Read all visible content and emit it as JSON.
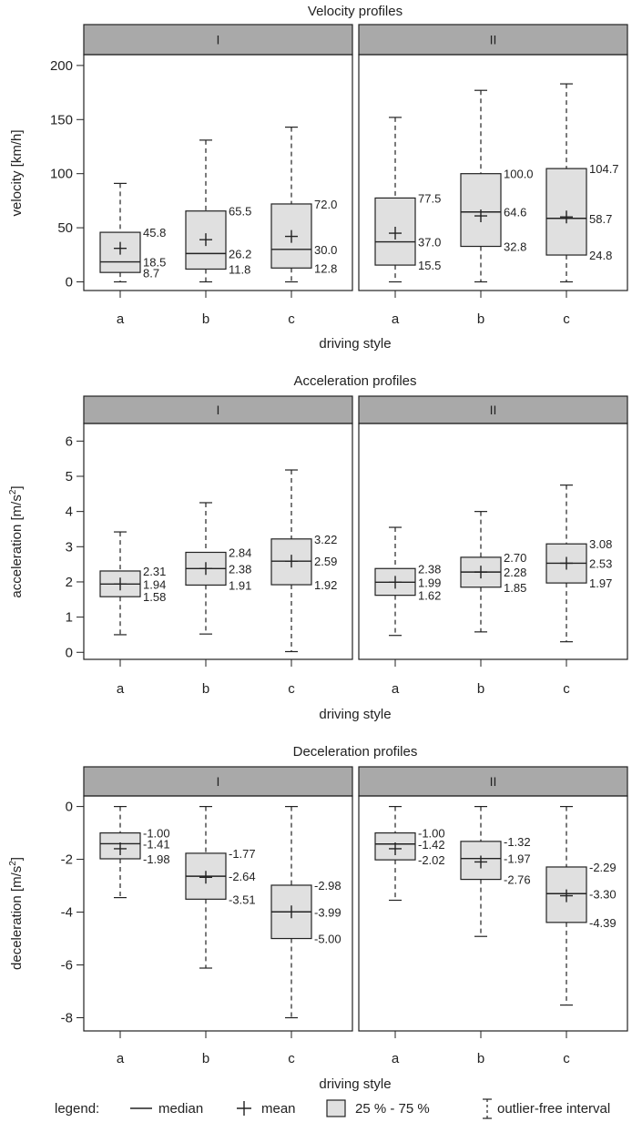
{
  "chart_data": [
    {
      "type": "boxplot",
      "title": "Velocity profiles",
      "xlabel": "driving style",
      "ylabel": "velocity [km/h]",
      "ylabel_sup": "",
      "ylim": [
        -8,
        210
      ],
      "yticks": [
        0,
        50,
        100,
        150,
        200
      ],
      "categories": [
        "a",
        "b",
        "c"
      ],
      "panels": [
        {
          "name": "I",
          "boxes": [
            {
              "cat": "a",
              "q1": 8.7,
              "median": 18.5,
              "q3": 45.8,
              "mean": 31,
              "whisker_low": 0,
              "whisker_high": 91,
              "labels": [
                "45.8",
                "18.5",
                "8.7"
              ]
            },
            {
              "cat": "b",
              "q1": 11.8,
              "median": 26.2,
              "q3": 65.5,
              "mean": 39,
              "whisker_low": 0,
              "whisker_high": 131,
              "labels": [
                "65.5",
                "26.2",
                "11.8"
              ]
            },
            {
              "cat": "c",
              "q1": 12.8,
              "median": 30.0,
              "q3": 72.0,
              "mean": 42,
              "whisker_low": 0,
              "whisker_high": 143,
              "labels": [
                "72.0",
                "30.0",
                "12.8"
              ]
            }
          ]
        },
        {
          "name": "II",
          "boxes": [
            {
              "cat": "a",
              "q1": 15.5,
              "median": 37.0,
              "q3": 77.5,
              "mean": 45,
              "whisker_low": 0,
              "whisker_high": 152,
              "labels": [
                "77.5",
                "37.0",
                "15.5"
              ]
            },
            {
              "cat": "b",
              "q1": 32.8,
              "median": 64.6,
              "q3": 100.0,
              "mean": 61,
              "whisker_low": 0,
              "whisker_high": 177,
              "labels": [
                "100.0",
                "64.6",
                "32.8"
              ]
            },
            {
              "cat": "c",
              "q1": 24.8,
              "median": 58.7,
              "q3": 104.7,
              "mean": 60,
              "whisker_low": 0,
              "whisker_high": 183,
              "labels": [
                "104.7",
                "58.7",
                "24.8"
              ]
            }
          ]
        }
      ]
    },
    {
      "type": "boxplot",
      "title": "Acceleration profiles",
      "xlabel": "driving style",
      "ylabel": "acceleration [m/s",
      "ylabel_sup": "2",
      "ylabel_end": "]",
      "ylim": [
        -0.2,
        6.5
      ],
      "yticks": [
        0,
        1,
        2,
        3,
        4,
        5,
        6
      ],
      "categories": [
        "a",
        "b",
        "c"
      ],
      "panels": [
        {
          "name": "I",
          "boxes": [
            {
              "cat": "a",
              "q1": 1.58,
              "median": 1.94,
              "q3": 2.31,
              "mean": 1.94,
              "whisker_low": 0.5,
              "whisker_high": 3.42,
              "labels": [
                "2.31",
                "1.94",
                "1.58"
              ]
            },
            {
              "cat": "b",
              "q1": 1.91,
              "median": 2.38,
              "q3": 2.84,
              "mean": 2.38,
              "whisker_low": 0.52,
              "whisker_high": 4.25,
              "labels": [
                "2.84",
                "2.38",
                "1.91"
              ]
            },
            {
              "cat": "c",
              "q1": 1.92,
              "median": 2.59,
              "q3": 3.22,
              "mean": 2.59,
              "whisker_low": 0.02,
              "whisker_high": 5.18,
              "labels": [
                "3.22",
                "2.59",
                "1.92"
              ]
            }
          ]
        },
        {
          "name": "II",
          "boxes": [
            {
              "cat": "a",
              "q1": 1.62,
              "median": 1.99,
              "q3": 2.38,
              "mean": 1.99,
              "whisker_low": 0.48,
              "whisker_high": 3.55,
              "labels": [
                "2.38",
                "1.99",
                "1.62"
              ]
            },
            {
              "cat": "b",
              "q1": 1.85,
              "median": 2.28,
              "q3": 2.7,
              "mean": 2.28,
              "whisker_low": 0.58,
              "whisker_high": 4.0,
              "labels": [
                "2.70",
                "2.28",
                "1.85"
              ]
            },
            {
              "cat": "c",
              "q1": 1.97,
              "median": 2.53,
              "q3": 3.08,
              "mean": 2.53,
              "whisker_low": 0.3,
              "whisker_high": 4.75,
              "labels": [
                "3.08",
                "2.53",
                "1.97"
              ]
            }
          ]
        }
      ]
    },
    {
      "type": "boxplot",
      "title": "Deceleration profiles",
      "xlabel": "driving style",
      "ylabel": "deceleration [m/s",
      "ylabel_sup": "2",
      "ylabel_end": "]",
      "ylim": [
        -8.5,
        0.4
      ],
      "yticks": [
        0,
        -2,
        -4,
        -6,
        -8
      ],
      "categories": [
        "a",
        "b",
        "c"
      ],
      "panels": [
        {
          "name": "I",
          "boxes": [
            {
              "cat": "a",
              "q1": -1.98,
              "median": -1.41,
              "q3": -1.0,
              "mean": -1.6,
              "whisker_low": -3.45,
              "whisker_high": 0,
              "labels": [
                "-1.00",
                "-1.41",
                "-1.98"
              ]
            },
            {
              "cat": "b",
              "q1": -3.51,
              "median": -2.64,
              "q3": -1.77,
              "mean": -2.68,
              "whisker_low": -6.12,
              "whisker_high": 0,
              "labels": [
                "-1.77",
                "-2.64",
                "-3.51"
              ]
            },
            {
              "cat": "c",
              "q1": -5.0,
              "median": -3.99,
              "q3": -2.98,
              "mean": -3.99,
              "whisker_low": -8.0,
              "whisker_high": 0,
              "labels": [
                "-2.98",
                "-3.99",
                "-5.00"
              ]
            }
          ]
        },
        {
          "name": "II",
          "boxes": [
            {
              "cat": "a",
              "q1": -2.02,
              "median": -1.42,
              "q3": -1.0,
              "mean": -1.6,
              "whisker_low": -3.55,
              "whisker_high": 0,
              "labels": [
                "-1.00",
                "-1.42",
                "-2.02"
              ]
            },
            {
              "cat": "b",
              "q1": -2.76,
              "median": -1.97,
              "q3": -1.32,
              "mean": -2.1,
              "whisker_low": -4.92,
              "whisker_high": 0,
              "labels": [
                "-1.32",
                "-1.97",
                "-2.76"
              ]
            },
            {
              "cat": "c",
              "q1": -4.39,
              "median": -3.3,
              "q3": -2.29,
              "mean": -3.38,
              "whisker_low": -7.52,
              "whisker_high": 0,
              "labels": [
                "-2.29",
                "-3.30",
                "-4.39"
              ]
            }
          ]
        }
      ]
    }
  ],
  "legend": {
    "title": "legend:",
    "items": [
      {
        "symbol": "median-line",
        "label": "median"
      },
      {
        "symbol": "mean-cross",
        "label": "mean"
      },
      {
        "symbol": "box",
        "label": "25 % - 75 %"
      },
      {
        "symbol": "whisker",
        "label": "outlier-free interval"
      }
    ]
  },
  "colors": {
    "box_fill": "#e0e0e0",
    "strip_fill": "#a9a9a9",
    "stroke": "#222222"
  }
}
